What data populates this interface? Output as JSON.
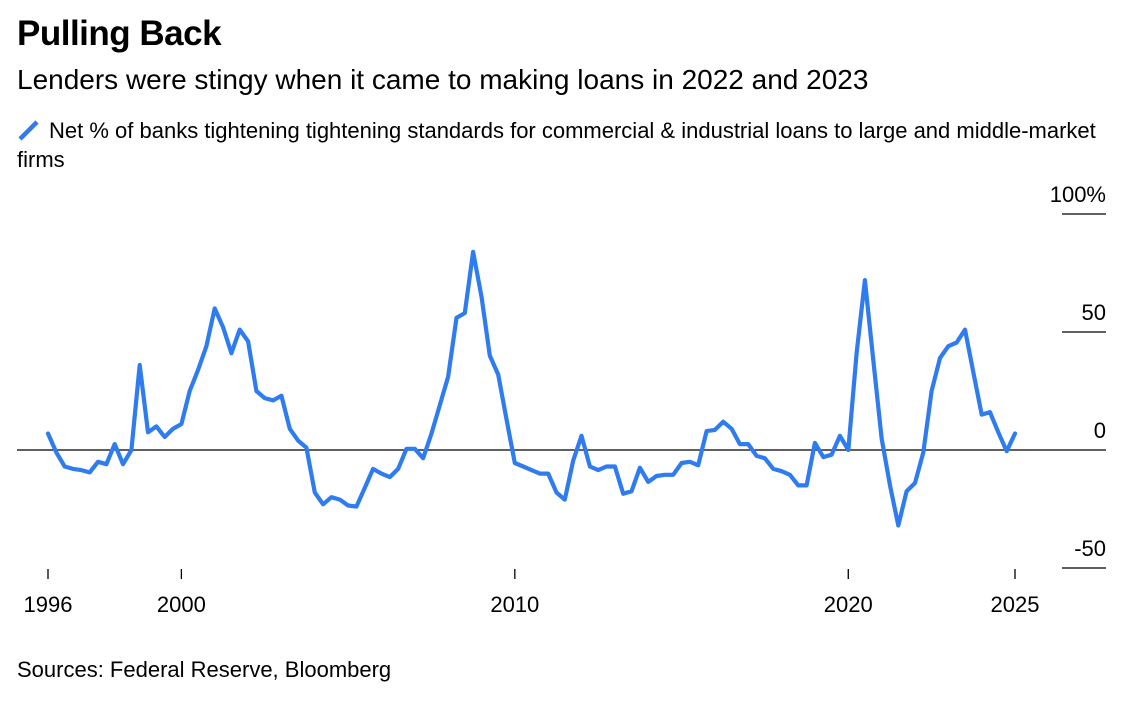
{
  "header": {
    "title": "Pulling Back",
    "subtitle": "Lenders were stingy when it came to making loans in 2022 and 2023"
  },
  "legend": {
    "label": "Net % of banks tightening tightening standards for commercial & industrial loans to large and middle-market firms",
    "color": "#2f7bf0"
  },
  "footer": {
    "source": "Sources: Federal Reserve, Bloomberg"
  },
  "chart_data": {
    "type": "line",
    "title": "Pulling Back",
    "subtitle": "Lenders were stingy when it came to making loans in 2022 and 2023",
    "xlabel": "",
    "ylabel": "",
    "xlim": [
      1995.9,
      2025.2
    ],
    "ylim": [
      -50,
      100
    ],
    "x_ticks": [
      1996,
      2000,
      2010,
      2020,
      2025
    ],
    "x_tick_labels": [
      "1996",
      "2000",
      "2010",
      "2020",
      "2025"
    ],
    "y_ticks": [
      100,
      50,
      0,
      -50
    ],
    "y_tick_labels": [
      "100%",
      "50",
      "0",
      "-50"
    ],
    "grid": false,
    "legend_position": "top-left",
    "series": [
      {
        "name": "Net % of banks tightening tightening standards for commercial & industrial loans to large and middle-market firms",
        "color": "#2f7bf0",
        "x": [
          1996.0,
          1996.25,
          1996.5,
          1996.75,
          1997.0,
          1997.25,
          1997.5,
          1997.75,
          1998.0,
          1998.25,
          1998.5,
          1998.75,
          1999.0,
          1999.25,
          1999.5,
          1999.75,
          2000.0,
          2000.25,
          2000.5,
          2000.75,
          2001.0,
          2001.25,
          2001.5,
          2001.75,
          2002.0,
          2002.25,
          2002.5,
          2002.75,
          2003.0,
          2003.25,
          2003.5,
          2003.75,
          2004.0,
          2004.25,
          2004.5,
          2004.75,
          2005.0,
          2005.25,
          2005.5,
          2005.75,
          2006.0,
          2006.25,
          2006.5,
          2006.75,
          2007.0,
          2007.25,
          2007.5,
          2007.75,
          2008.0,
          2008.25,
          2008.5,
          2008.75,
          2009.0,
          2009.25,
          2009.5,
          2009.75,
          2010.0,
          2010.25,
          2010.5,
          2010.75,
          2011.0,
          2011.25,
          2011.5,
          2011.75,
          2012.0,
          2012.25,
          2012.5,
          2012.75,
          2013.0,
          2013.25,
          2013.5,
          2013.75,
          2014.0,
          2014.25,
          2014.5,
          2014.75,
          2015.0,
          2015.25,
          2015.5,
          2015.75,
          2016.0,
          2016.25,
          2016.5,
          2016.75,
          2017.0,
          2017.25,
          2017.5,
          2017.75,
          2018.0,
          2018.25,
          2018.5,
          2018.75,
          2019.0,
          2019.25,
          2019.5,
          2019.75,
          2020.0,
          2020.25,
          2020.5,
          2020.75,
          2021.0,
          2021.25,
          2021.5,
          2021.75,
          2022.0,
          2022.25,
          2022.5,
          2022.75,
          2023.0,
          2023.25,
          2023.5,
          2023.75,
          2024.0,
          2024.25,
          2024.5,
          2024.75,
          2025.0
        ],
        "values": [
          7,
          -1,
          -7,
          -8,
          -8.5,
          -9.5,
          -5,
          -6,
          2.5,
          -6,
          0,
          36,
          7.5,
          10,
          5.5,
          9,
          11,
          25,
          34,
          44,
          60,
          52,
          41,
          51,
          46,
          25,
          22,
          21,
          23,
          9,
          4,
          1,
          -18,
          -23,
          -20,
          -21,
          -23.5,
          -24,
          -16,
          -8,
          -10,
          -11.5,
          -8,
          0.5,
          0.5,
          -3.5,
          7,
          19,
          31,
          56,
          58,
          84,
          65,
          40,
          32,
          13,
          -5.5,
          -7,
          -8.5,
          -10,
          -10,
          -18,
          -21,
          -4.5,
          6,
          -7,
          -8.5,
          -7,
          -7,
          -18.5,
          -17.5,
          -7.5,
          -13.5,
          -11,
          -10.5,
          -10.5,
          -5.5,
          -5,
          -6.5,
          8,
          8.5,
          12,
          9,
          2.5,
          2.5,
          -2.5,
          -3.5,
          -8,
          -9,
          -10.5,
          -15,
          -15,
          3,
          -3,
          -2,
          6,
          0,
          41,
          72,
          38,
          5,
          -15,
          -32,
          -17.5,
          -14,
          -1,
          25,
          39,
          44,
          45.5,
          51,
          33,
          15,
          16,
          7.5,
          -0.5,
          7
        ]
      }
    ]
  }
}
